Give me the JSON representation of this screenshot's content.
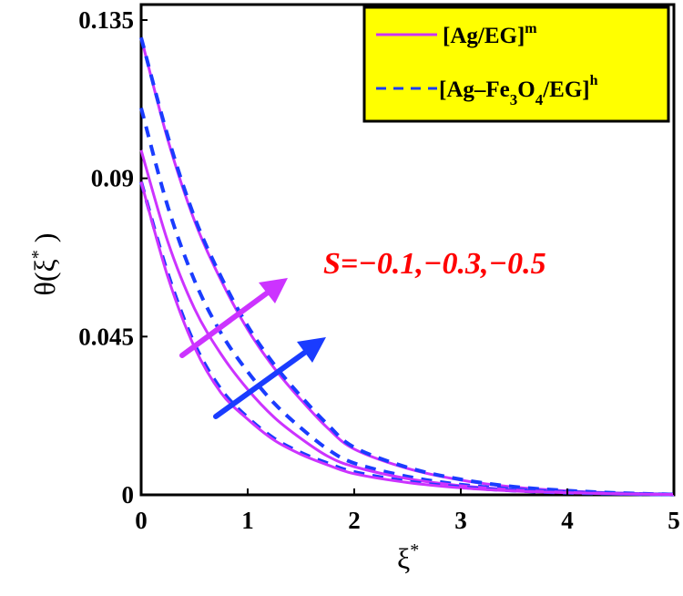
{
  "chart_data": {
    "type": "line",
    "title": "",
    "xlabel": "ξ*",
    "ylabel": "θ(ξ*)",
    "xlim": [
      0,
      5
    ],
    "ylim": [
      0,
      0.135
    ],
    "xticks": [
      "0",
      "1",
      "2",
      "3",
      "4",
      "5"
    ],
    "yticks": [
      "0",
      "0.045",
      "0.09",
      "0.135"
    ],
    "grid": false,
    "legend_position": "upper right",
    "legend": [
      {
        "label": "[Ag/EG]",
        "sup": "m",
        "style": "solid",
        "color": "#cc33ff"
      },
      {
        "label": "[Ag–Fe3O4/EG]",
        "sup": "h",
        "style": "dashed",
        "color": "#1a3cff"
      }
    ],
    "annotation": {
      "text": "S=−0.1,−0.3,−0.5",
      "color": "#ff0000"
    },
    "x": [
      0,
      0.25,
      0.5,
      0.75,
      1,
      1.25,
      1.5,
      1.75,
      2,
      2.5,
      3,
      3.5,
      4,
      4.5,
      5
    ],
    "series": [
      {
        "name": "[Ag/EG]^m S=-0.5",
        "style": "solid",
        "color": "#cc33ff",
        "values": [
          0.13,
          0.101,
          0.078,
          0.061,
          0.047,
          0.036,
          0.027,
          0.019,
          0.013,
          0.0075,
          0.0042,
          0.0022,
          0.0011,
          0.0005,
          0.0001
        ]
      },
      {
        "name": "[Ag–Fe3O4/EG]^h S=-0.5",
        "style": "dashed",
        "color": "#1a3cff",
        "values": [
          0.13,
          0.102,
          0.079,
          0.062,
          0.048,
          0.037,
          0.028,
          0.02,
          0.0135,
          0.0078,
          0.0044,
          0.0023,
          0.0012,
          0.0005,
          0.0001
        ]
      },
      {
        "name": "[Ag–Fe3O4/EG]^h S=-0.3",
        "style": "dashed",
        "color": "#1a3cff",
        "values": [
          0.11,
          0.082,
          0.061,
          0.046,
          0.035,
          0.026,
          0.019,
          0.013,
          0.009,
          0.0052,
          0.0029,
          0.0016,
          0.0008,
          0.0003,
          0.0001
        ]
      },
      {
        "name": "[Ag/EG]^m S=-0.3",
        "style": "solid",
        "color": "#cc33ff",
        "values": [
          0.098,
          0.072,
          0.053,
          0.04,
          0.03,
          0.022,
          0.016,
          0.011,
          0.008,
          0.0046,
          0.0026,
          0.0014,
          0.0007,
          0.0003,
          0.0001
        ]
      },
      {
        "name": "[Ag–Fe3O4/EG]^h S=-0.1",
        "style": "dashed",
        "color": "#1a3cff",
        "values": [
          0.089,
          0.063,
          0.043,
          0.03,
          0.022,
          0.016,
          0.012,
          0.009,
          0.0065,
          0.0038,
          0.0022,
          0.0012,
          0.0006,
          0.0003,
          0.0001
        ]
      },
      {
        "name": "[Ag/EG]^m S=-0.1",
        "style": "solid",
        "color": "#cc33ff",
        "values": [
          0.089,
          0.062,
          0.042,
          0.029,
          0.0215,
          0.0155,
          0.0115,
          0.0085,
          0.006,
          0.0035,
          0.002,
          0.0011,
          0.0006,
          0.0003,
          0.0001
        ]
      }
    ]
  },
  "legend": {
    "item1_label": "[Ag/EG]",
    "item1_sup": "m",
    "item2_prefix": "[Ag–Fe",
    "item2_sub1": "3",
    "item2_mid": "O",
    "item2_sub2": "4",
    "item2_suffix": "/EG]",
    "item2_sup": "h"
  },
  "axes": {
    "xlabel_main": "ξ",
    "xlabel_sup": "*",
    "ylabel_prefix": "θ(ξ",
    "ylabel_sup": "*",
    "ylabel_suffix": " )"
  },
  "colors": {
    "solid": "#cc33ff",
    "dashed": "#1a3cff",
    "annotation": "#ff0000",
    "legend_bg": "#ffff00"
  }
}
